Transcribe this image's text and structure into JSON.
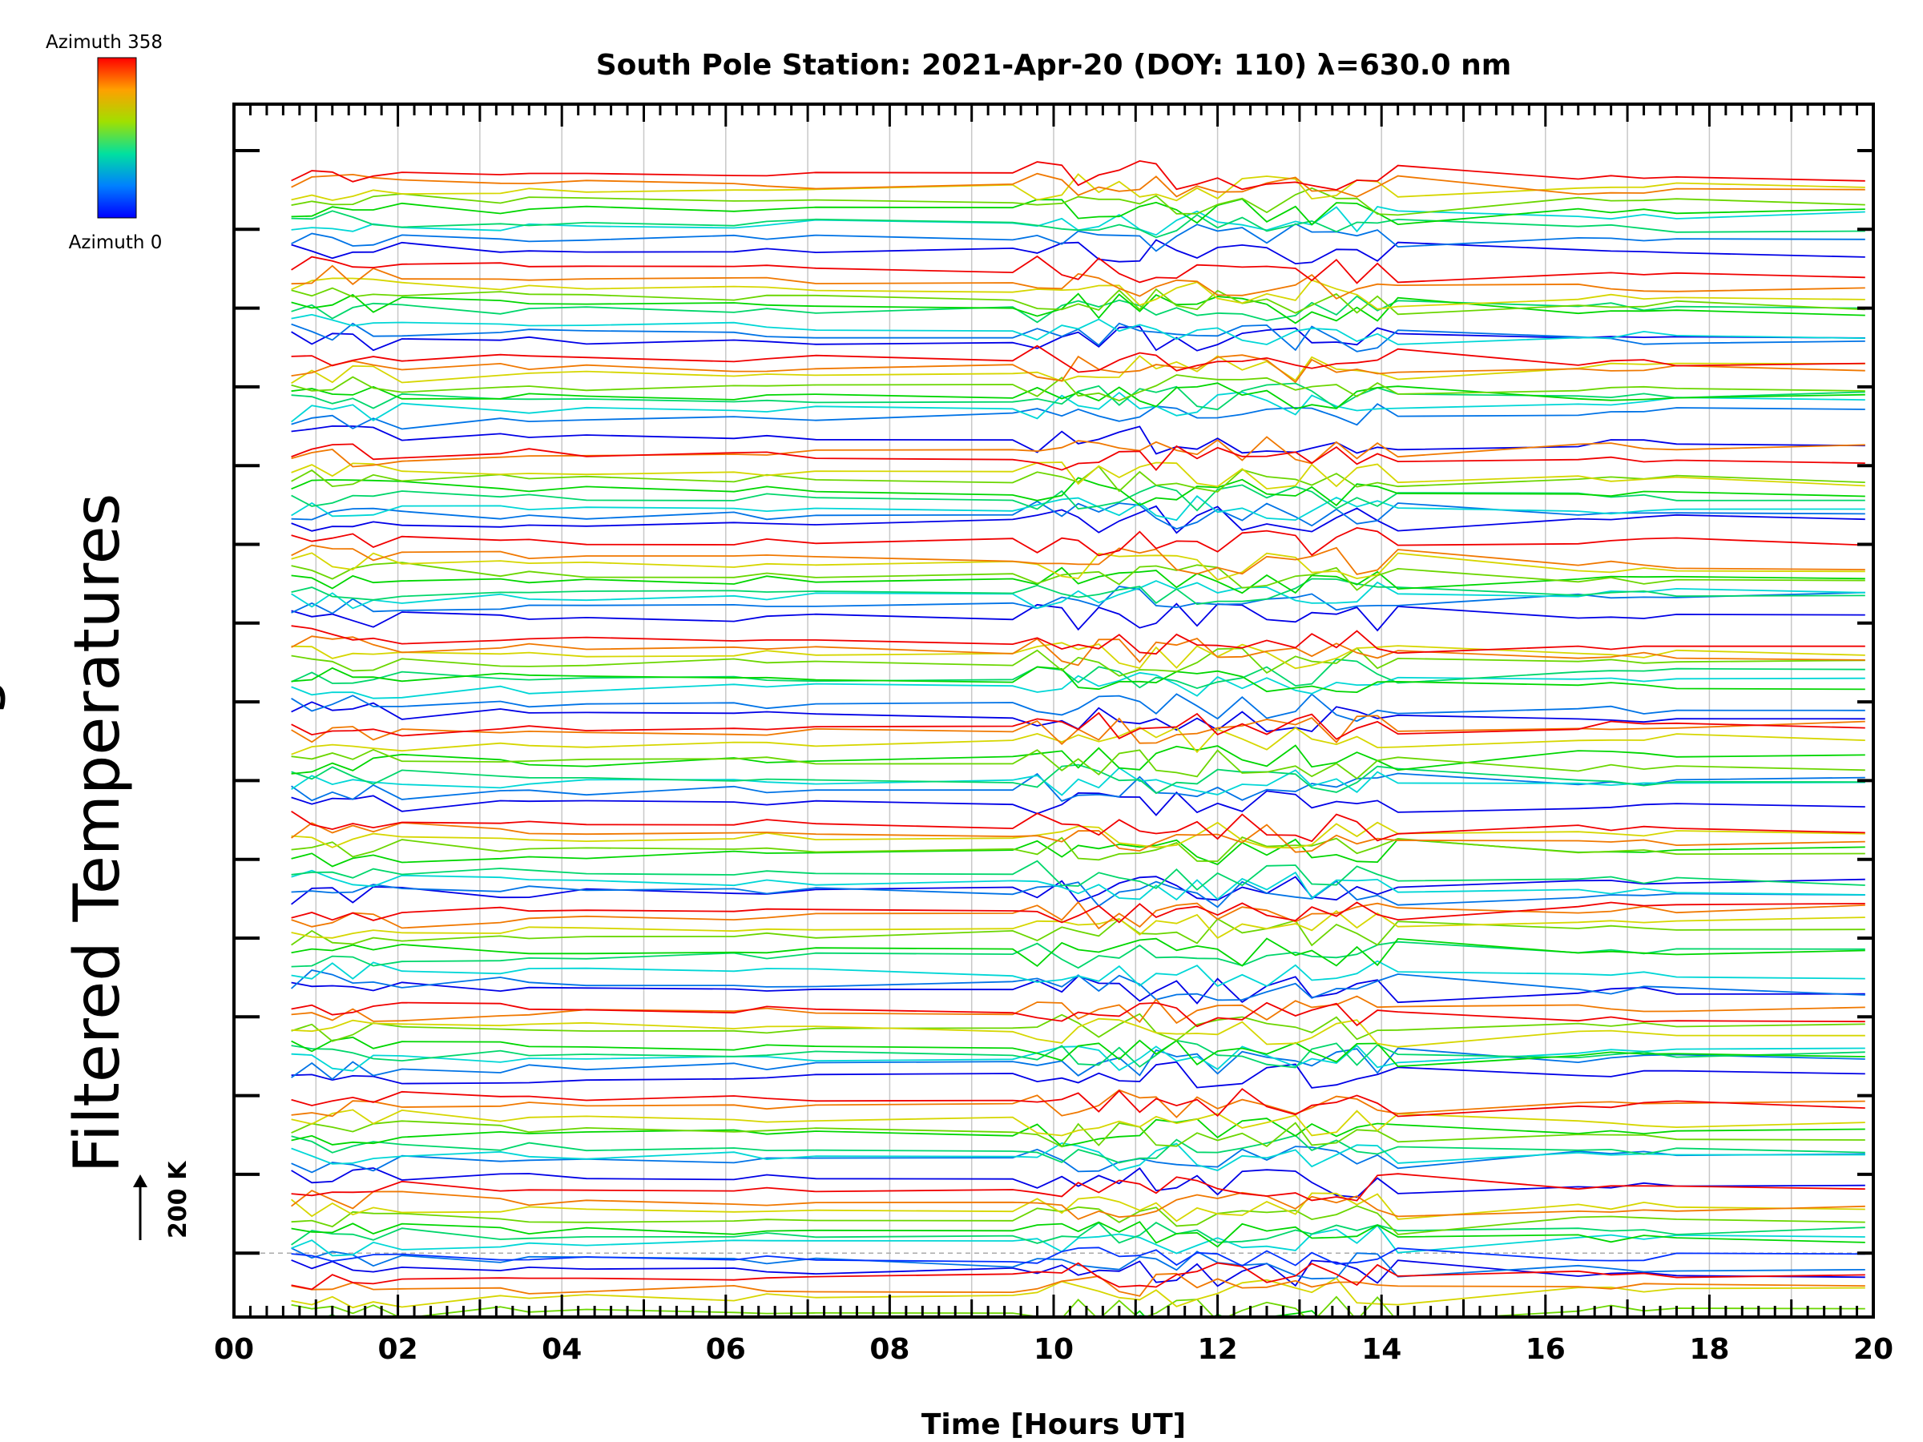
{
  "chart_data": {
    "type": "line",
    "title": "South Pole Station: 2021-Apr-20 (DOY: 110) λ=630.0 nm",
    "xlabel": "Time [Hours UT]",
    "ylabel": "Filtered Temperatures",
    "ylabel_partial": "g",
    "xlim": [
      0,
      20
    ],
    "x_tick_labels": [
      "00",
      "02",
      "04",
      "06",
      "08",
      "10",
      "12",
      "14",
      "16",
      "18",
      "20"
    ],
    "y_major_ticks": 15,
    "scale_bar_label": "200 K",
    "colorbar": {
      "top_label": "Azimuth 358",
      "bottom_label": "Azimuth 0",
      "colormap": "rainbow"
    },
    "time_samples": [
      0.7,
      0.95,
      1.2,
      1.45,
      1.7,
      2.05,
      3.25,
      3.6,
      4.3,
      6.1,
      6.5,
      7.1,
      9.5,
      9.8,
      10.1,
      10.3,
      10.55,
      10.8,
      11.05,
      11.25,
      11.5,
      11.75,
      12.0,
      12.3,
      12.6,
      12.95,
      13.15,
      13.45,
      13.7,
      13.95,
      14.2,
      16.4,
      16.8,
      17.2,
      17.6,
      19.9
    ],
    "active_range": [
      9.8,
      14.2
    ],
    "n_groups": 13,
    "lines_per_group": 9,
    "group_spacing_K": 200,
    "series_note": "Stacked temperature traces, 13 station groups x 9 azimuths, offset by 200 K; colour encodes azimuth 0-358"
  },
  "colors": {
    "axis": "#000000",
    "grid": "#c8c8c8",
    "baseline": "#aaaaaa"
  }
}
